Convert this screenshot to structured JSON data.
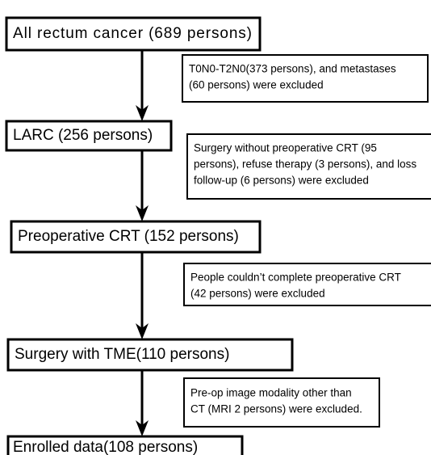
{
  "nodes": [
    {
      "label": "All rectum cancer  (689 persons)"
    },
    {
      "label": "LARC (256 persons)"
    },
    {
      "label": "Preoperative CRT (152 persons)"
    },
    {
      "label": "Surgery with TME(110 persons)"
    },
    {
      "label": "Enrolled data(108 persons)"
    }
  ],
  "exclusions": [
    {
      "lines": [
        "T0N0-T2N0(373 persons), and metastases",
        "(60 persons) were excluded"
      ]
    },
    {
      "lines": [
        "Surgery without preoperative CRT (95",
        "persons), refuse therapy (3 persons), and loss",
        "follow-up (6 persons) were excluded"
      ]
    },
    {
      "lines": [
        "People couldn’t complete preoperative  CRT",
        "(42 persons) were excluded"
      ]
    },
    {
      "lines": [
        "Pre-op image modality other than",
        "CT (MRI 2 persons) were excluded."
      ]
    }
  ]
}
